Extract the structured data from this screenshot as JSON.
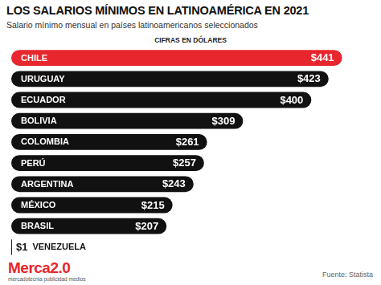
{
  "chart_data": {
    "type": "bar",
    "title": "LOS SALARIOS MÍNIMOS EN LATINOAMÉRICA EN 2021",
    "subtitle": "Salario mínimo mensual en países latinoamericanos seleccionados",
    "annotations": {
      "units": "CIFRAS EN DÓLARES",
      "brand": "Merca2.0",
      "tagline": "mercadotecnia publicidad medios",
      "source": "Fuente: Statista"
    },
    "categories": [
      "CHILE",
      "URUGUAY",
      "ECUADOR",
      "BOLIVIA",
      "COLOMBIA",
      "PERÚ",
      "ARGENTINA",
      "MÉXICO",
      "BRASIL",
      "VENEZUELA"
    ],
    "values": [
      441,
      423,
      400,
      309,
      261,
      257,
      243,
      215,
      207,
      1
    ],
    "value_labels": [
      "$441",
      "$423",
      "$400",
      "$309",
      "$261",
      "$257",
      "$243",
      "$215",
      "$207",
      "$1"
    ],
    "colors": [
      "#e8262d",
      "#111111",
      "#111111",
      "#111111",
      "#111111",
      "#111111",
      "#111111",
      "#111111",
      "#111111",
      "#111111"
    ],
    "xlim": [
      0,
      450
    ],
    "orientation": "horizontal",
    "data_labels": true,
    "tick_labels": false,
    "grid": false
  }
}
